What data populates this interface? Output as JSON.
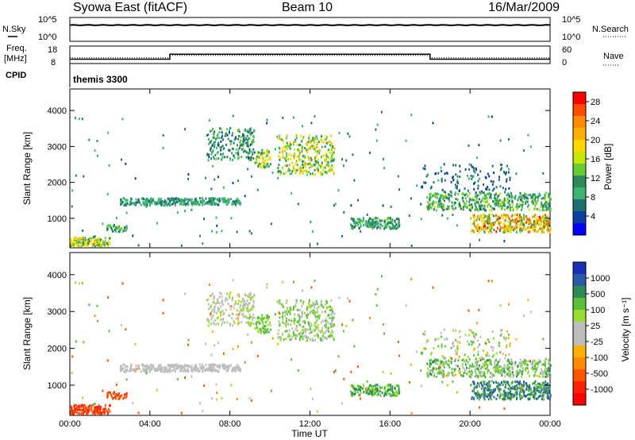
{
  "header": {
    "station": "Syowa East (fitACF)",
    "beam": "Beam 10",
    "date": "16/Mar/2009"
  },
  "summary_panels": {
    "nsky": {
      "left_label": "N.Sky",
      "ticks": [
        "10^5",
        "10^0"
      ],
      "right_label": "N.Search",
      "right_ticks": [
        "10^5",
        "10^0"
      ]
    },
    "freq": {
      "left_label_1": "Freq.",
      "left_label_2": "[MHz]",
      "ticks": [
        "18",
        "8"
      ],
      "right_label": "Nave",
      "right_ticks": [
        "60",
        "0"
      ]
    },
    "cpid": {
      "left_label": "CPID",
      "program": "themis 3300"
    }
  },
  "colorbars": {
    "power": {
      "label": "Power [dB]",
      "ticks": [
        "28",
        "24",
        "20",
        "16",
        "12",
        "8",
        "4"
      ],
      "colors": [
        "#ff0000",
        "#ff4d00",
        "#ff8c00",
        "#ffb000",
        "#ffd800",
        "#c8e600",
        "#66cc33",
        "#2e8b57",
        "#3cb371",
        "#1f6f6f",
        "#0a3fa0",
        "#0000ff"
      ]
    },
    "velocity": {
      "label": "Velocity [m s⁻¹]",
      "ticks": [
        "1000",
        "500",
        "100",
        "25",
        "-25",
        "-100",
        "-500",
        "-1000"
      ],
      "colors": [
        "#1a2fb8",
        "#2b5ba8",
        "#2e8b57",
        "#5cbf3a",
        "#99dd33",
        "#bdbdbd",
        "#bdbdbd",
        "#ffb000",
        "#ff8c00",
        "#ff5500",
        "#ff2200",
        "#ff0000"
      ]
    }
  },
  "chart_data": [
    {
      "type": "line",
      "title": "N.Sky / N.Search",
      "x": [
        "00:00",
        "04:00",
        "08:00",
        "12:00",
        "16:00",
        "20:00",
        "00:00"
      ],
      "series": [
        {
          "name": "N.Sky",
          "values": [
            3.4,
            3.4,
            3.4,
            3.4,
            3.4,
            3.4,
            3.4
          ]
        }
      ],
      "ylabel": "N.Sky",
      "ylim": [
        0,
        5
      ],
      "yscale": "log"
    },
    {
      "type": "line",
      "title": "Freq. / Nave",
      "x": [
        0,
        5,
        5,
        18,
        18,
        24
      ],
      "series": [
        {
          "name": "Freq. [MHz]",
          "values": [
            10.5,
            10.5,
            13.3,
            13.3,
            10.5,
            10.5
          ]
        },
        {
          "name": "Nave",
          "values": [
            20,
            20,
            28,
            28,
            20,
            20
          ]
        }
      ],
      "ylabel": "Freq. [MHz]",
      "ylim": [
        8,
        18
      ]
    },
    {
      "type": "heatmap",
      "title": "Power",
      "xlabel": "",
      "ylabel": "Slant Range [km]",
      "x_ticks": [
        "00:00",
        "04:00",
        "08:00",
        "12:00",
        "16:00",
        "20:00",
        "00:00"
      ],
      "y_ticks": [
        "1000",
        "2000",
        "3000",
        "4000"
      ],
      "xlim_hours": [
        0,
        24
      ],
      "ylim": [
        180,
        4600
      ],
      "colorbar": "Power [dB]",
      "clim": [
        0,
        30
      ]
    },
    {
      "type": "heatmap",
      "title": "Velocity",
      "xlabel": "Time UT",
      "ylabel": "Slant Range [km]",
      "x_ticks": [
        "00:00",
        "04:00",
        "08:00",
        "12:00",
        "16:00",
        "20:00",
        "00:00"
      ],
      "y_ticks": [
        "1000",
        "2000",
        "3000",
        "4000"
      ],
      "xlim_hours": [
        0,
        24
      ],
      "ylim": [
        180,
        4600
      ],
      "colorbar": "Velocity [m s⁻¹]",
      "clim": [
        -1200,
        1200
      ]
    }
  ],
  "axes": {
    "x_ticks": [
      "00:00",
      "04:00",
      "08:00",
      "12:00",
      "16:00",
      "20:00",
      "00:00"
    ],
    "y_ticks": [
      "1000",
      "2000",
      "3000",
      "4000"
    ],
    "y_label": "Slant Range [km]",
    "x_label": "Time UT"
  }
}
